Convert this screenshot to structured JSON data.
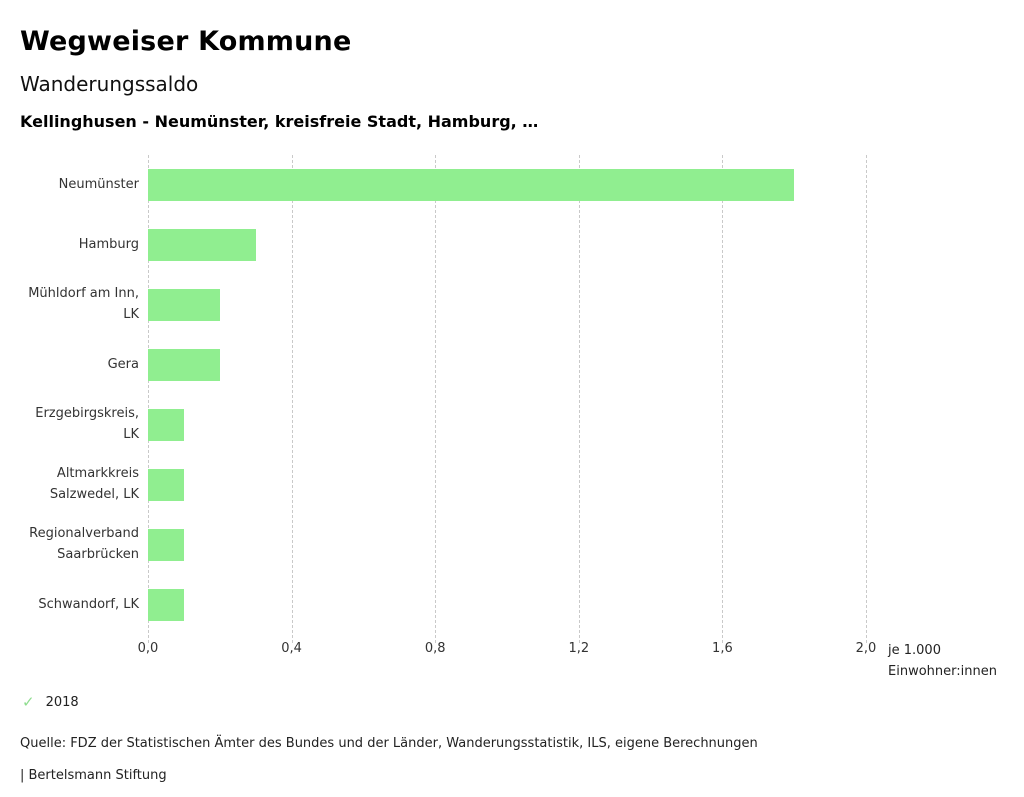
{
  "header": {
    "title": "Wegweiser Kommune",
    "subtitle": "Wanderungssaldo",
    "chart_title": "Kellinghusen - Neumünster, kreisfreie Stadt, Hamburg, …"
  },
  "chart_data": {
    "type": "bar",
    "orientation": "horizontal",
    "title": "Wanderungssaldo",
    "categories": [
      "Neumünster",
      "Hamburg",
      "Mühldorf am Inn, LK",
      "Gera",
      "Erzgebirgskreis, LK",
      "Altmarkkreis Salzwedel, LK",
      "Regionalverband Saarbrücken",
      "Schwandorf, LK"
    ],
    "values": [
      1.8,
      0.3,
      0.2,
      0.2,
      0.1,
      0.1,
      0.1,
      0.1
    ],
    "series_name": "2018",
    "xlim": [
      0,
      2.0
    ],
    "x_ticks": [
      "0,0",
      "0,4",
      "0,8",
      "1,2",
      "1,6",
      "2,0"
    ],
    "x_tick_values": [
      0,
      0.4,
      0.8,
      1.2,
      1.6,
      2.0
    ],
    "axis_unit": [
      "je 1.000",
      "Einwohner:innen"
    ],
    "bar_color": "#90ee90",
    "grid": "dashed-vertical",
    "legend_position": "bottom-left"
  },
  "legend": {
    "check_icon": "✓",
    "label": "2018",
    "check_color": "#8fdd8f"
  },
  "footer": {
    "source": "Quelle: FDZ der Statistischen Ämter des Bundes und der Länder, Wanderungsstatistik, ILS, eigene Berechnungen",
    "branding": "| Bertelsmann Stiftung"
  }
}
